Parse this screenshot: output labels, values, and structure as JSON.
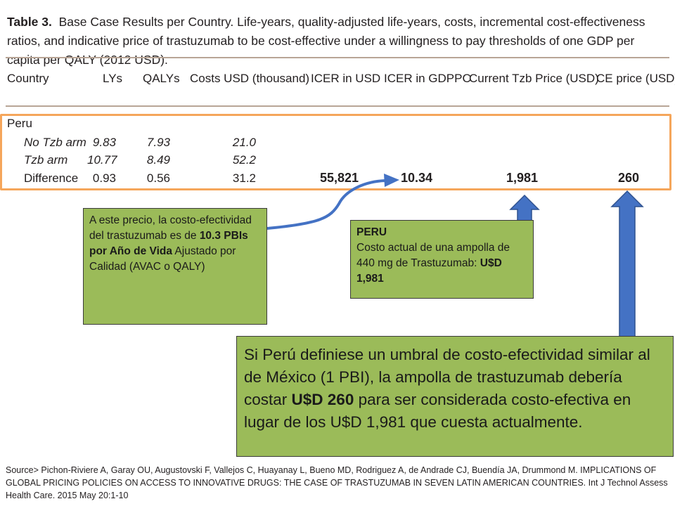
{
  "table": {
    "caption_label": "Table 3.",
    "caption_text": "Base Case Results per Country. Life-years, quality-adjusted life-years, costs, incremental cost-effectiveness ratios, and indicative price of trastuzumab to be cost-effective under a willingness to pay thresholds of one GDP per capita per QALY (2012 USD).",
    "headers": [
      "Country",
      "LYs",
      "QALYs",
      "Costs USD (thousand)",
      "ICER in USD",
      "ICER in GDPPC",
      "Current Tzb Price (USD)",
      "CE price (USD)"
    ],
    "country": "Peru",
    "rows": [
      {
        "label": "No Tzb arm",
        "lys": "9.83",
        "qalys": "7.93",
        "costs": "21.0"
      },
      {
        "label": "Tzb arm",
        "lys": "10.77",
        "qalys": "8.49",
        "costs": "52.2"
      },
      {
        "label": "Difference",
        "lys": "0.93",
        "qalys": "0.56",
        "costs": "31.2",
        "icer_usd": "55,821",
        "icer_gdppc": "10.34",
        "current_price": "1,981",
        "ce_price": "260"
      }
    ]
  },
  "callouts": {
    "left": {
      "pre": "A este precio, la costo-efectividad del trastuzumab es de ",
      "bold": "10.3 PBIs por Año de Vida",
      "post": " Ajustado por Calidad (AVAC o QALY)"
    },
    "peru": {
      "title": "PERU",
      "text": "Costo actual de una ampolla de 440 mg de Trastuzumab: ",
      "bold": "U$D 1,981"
    },
    "main": {
      "pre": "Si Perú definiese un umbral de costo-efectividad similar al de México (1 PBI), la ampolla de trastuzumab debería costar ",
      "bold": "U$D 260",
      "post": " para ser considerada costo-efectiva en lugar de los U$D 1,981 que cuesta actualmente."
    }
  },
  "source": "Source> Pichon-Riviere A, Garay OU, Augustovski F, Vallejos C, Huayanay L, Bueno MD, Rodriguez A, de Andrade CJ, Buendía JA, Drummond M. IMPLICATIONS OF GLOBAL PRICING POLICIES ON ACCESS TO INNOVATIVE DRUGS: THE CASE OF TRASTUZUMAB IN SEVEN LATIN AMERICAN COUNTRIES. Int J Technol Assess Health Care. 2015 May 20:1-10",
  "colors": {
    "callout_fill": "#9bbb59",
    "arrow_blue": "#4472c4",
    "highlight_orange": "#f5a65b",
    "rule": "#b8a596"
  }
}
